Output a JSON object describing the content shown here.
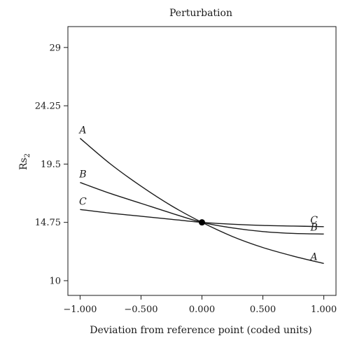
{
  "chart_data": {
    "type": "line",
    "title": "Perturbation",
    "xlabel": "Deviation from reference point (coded units)",
    "ylabel_main": "Rs",
    "ylabel_sub": "2",
    "xlim": [
      -1.1,
      1.1
    ],
    "ylim": [
      8.8,
      30.7
    ],
    "x_ticks": [
      -1.0,
      -0.5,
      0.0,
      0.5,
      1.0
    ],
    "x_tick_labels": [
      "−1.000",
      "−0.500",
      "0.000",
      "0.500",
      "1.000"
    ],
    "y_ticks": [
      10,
      14.75,
      19.5,
      24.25,
      29
    ],
    "y_tick_labels": [
      "10",
      "14.75",
      "19.5",
      "24.25",
      "29"
    ],
    "grid": false,
    "reference_point": {
      "x": 0.0,
      "y": 14.75
    },
    "series": [
      {
        "name": "A",
        "x": [
          -1.0,
          -0.75,
          -0.5,
          -0.25,
          0.0,
          0.25,
          0.5,
          0.75,
          1.0
        ],
        "y": [
          21.6,
          19.5,
          17.7,
          16.1,
          14.75,
          13.6,
          12.7,
          12.0,
          11.4
        ]
      },
      {
        "name": "B",
        "x": [
          -1.0,
          -0.75,
          -0.5,
          -0.25,
          0.0,
          0.25,
          0.5,
          0.75,
          1.0
        ],
        "y": [
          18.0,
          17.1,
          16.3,
          15.5,
          14.75,
          14.3,
          14.0,
          13.85,
          13.8
        ]
      },
      {
        "name": "C",
        "x": [
          -1.0,
          -0.75,
          -0.5,
          -0.25,
          0.0,
          0.25,
          0.5,
          0.75,
          1.0
        ],
        "y": [
          15.8,
          15.5,
          15.25,
          15.0,
          14.75,
          14.6,
          14.5,
          14.45,
          14.4
        ]
      }
    ]
  }
}
